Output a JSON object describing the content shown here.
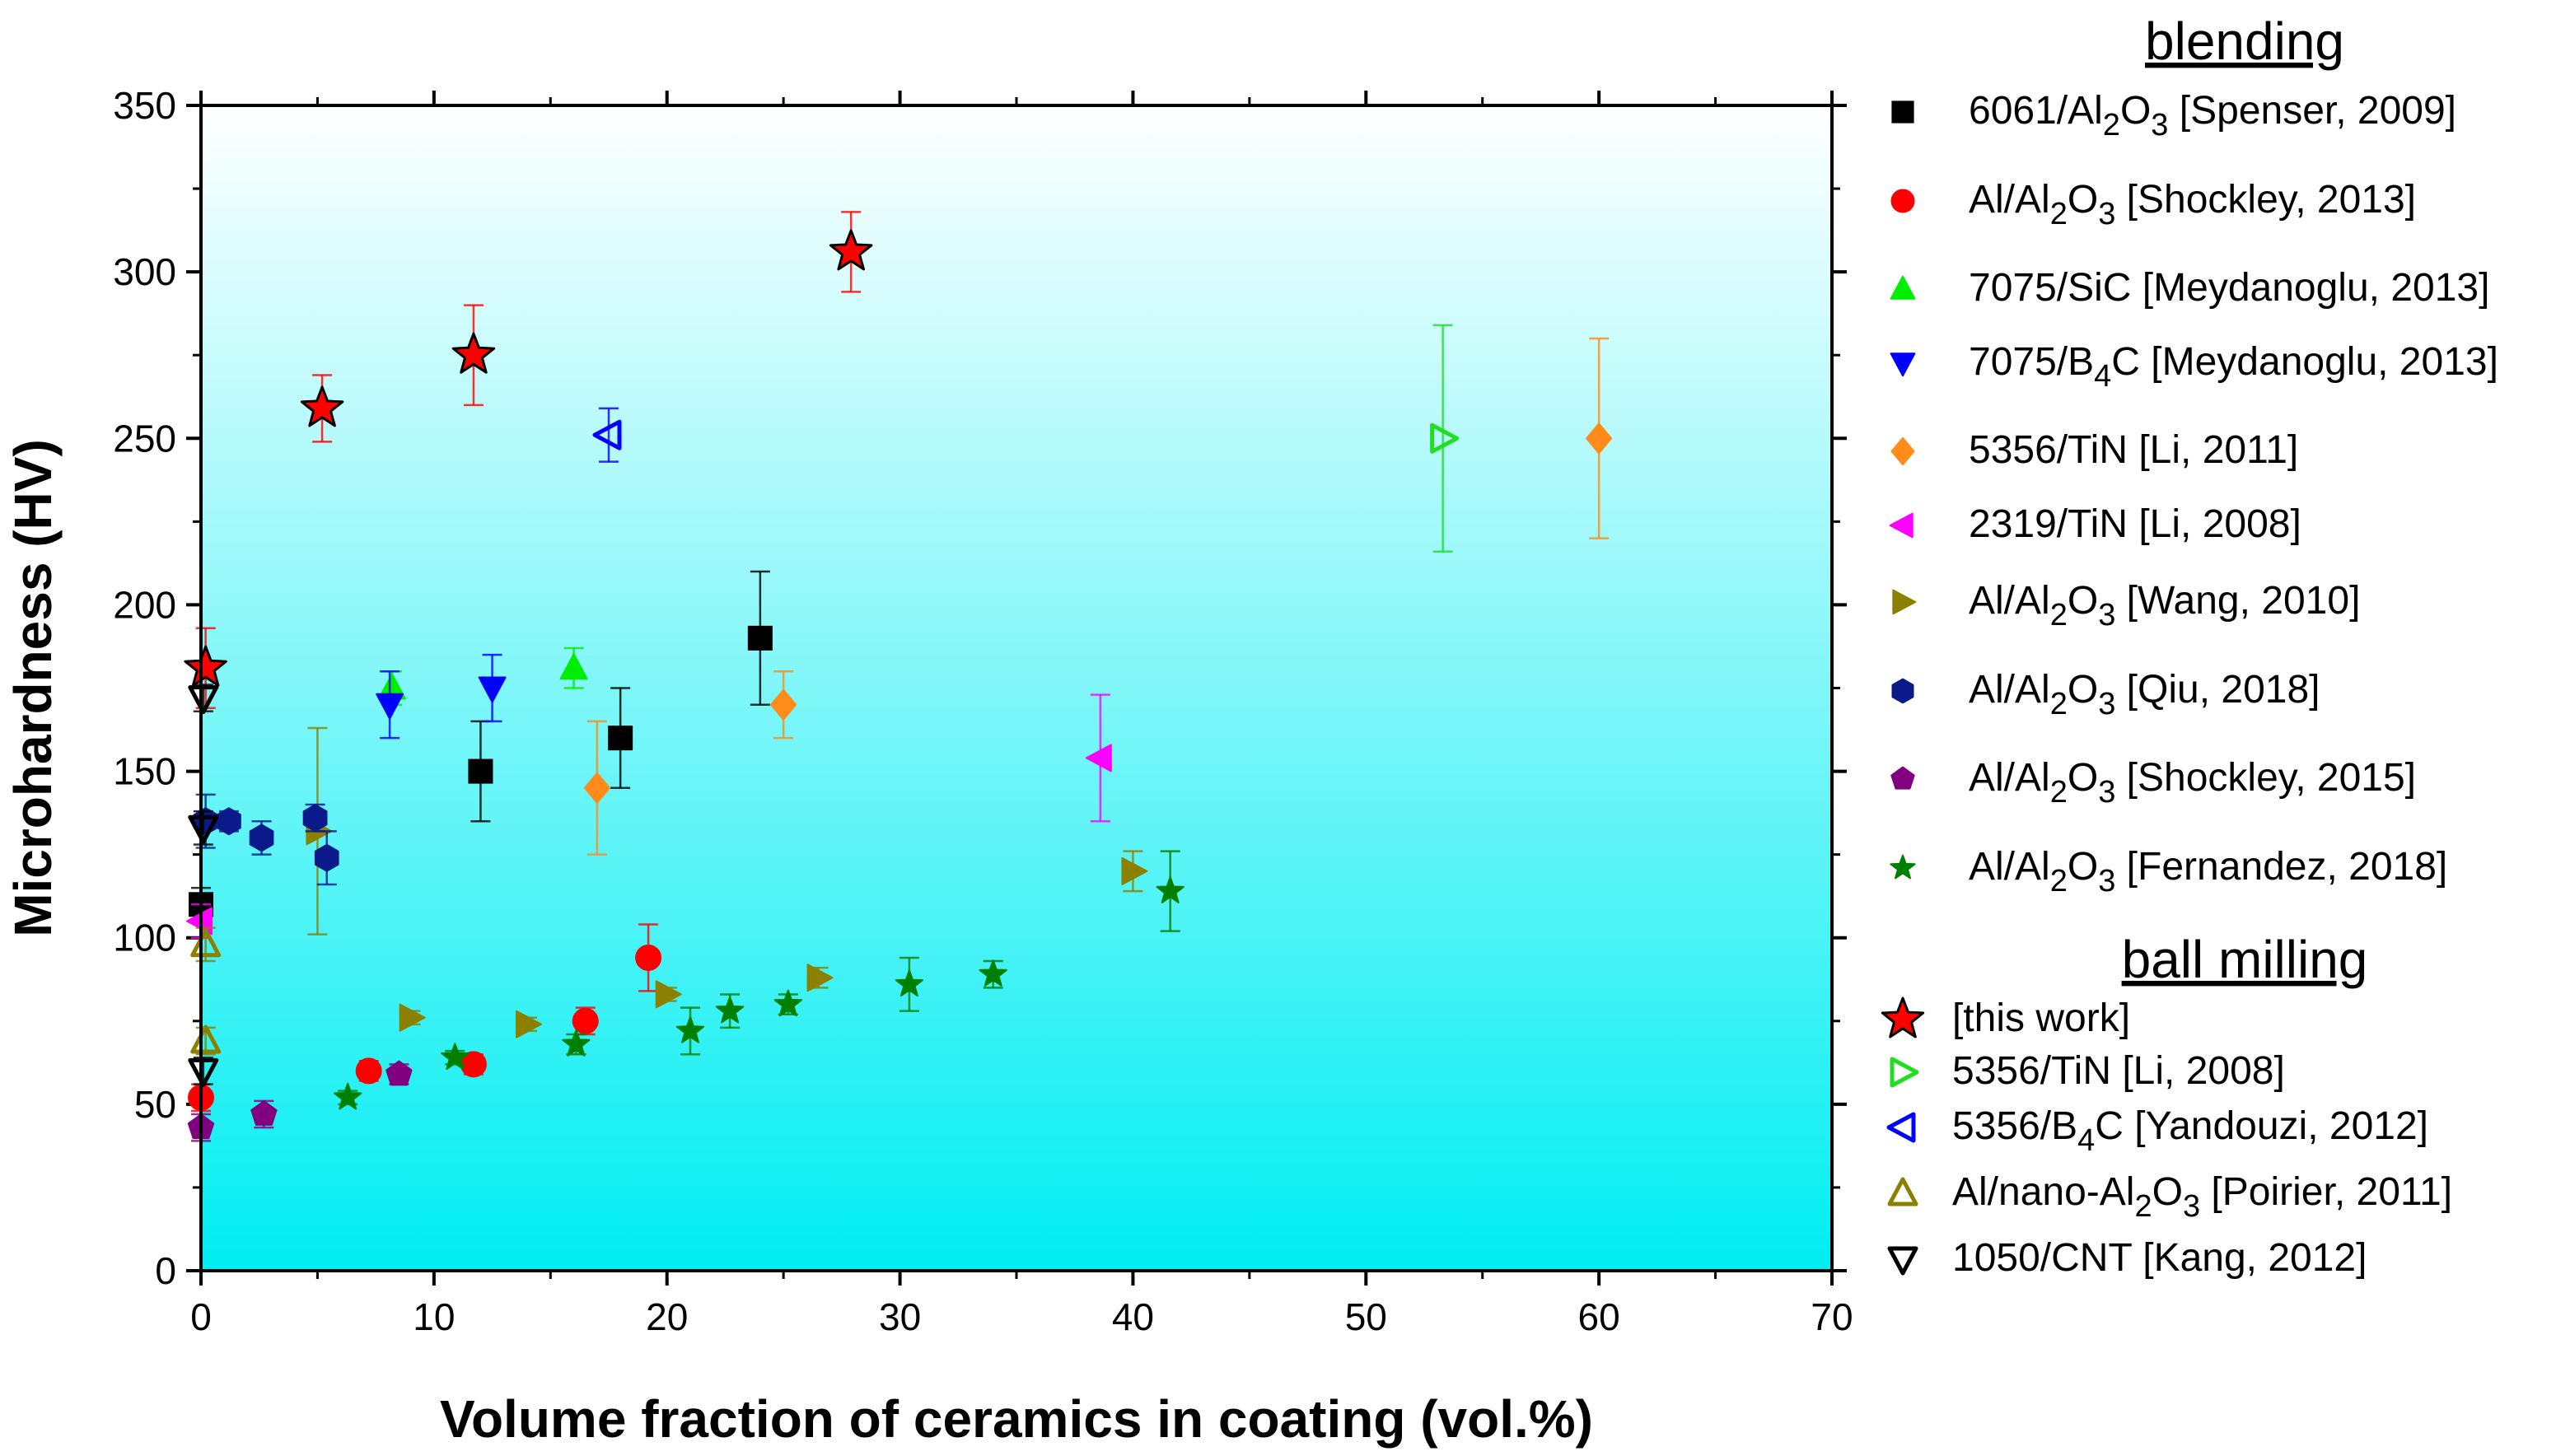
{
  "chart_data": {
    "type": "scatter",
    "title": "",
    "xlabel": "Volume fraction of ceramics in coating (vol.%)",
    "ylabel": "Microhardness (HV)",
    "xlim": [
      0,
      70
    ],
    "ylim": [
      0,
      350
    ],
    "xticks": [
      0,
      10,
      20,
      30,
      40,
      50,
      60,
      70
    ],
    "yticks": [
      0,
      50,
      100,
      150,
      200,
      250,
      300,
      350
    ],
    "grid": false,
    "background": "gradient white-to-cyan",
    "legend_groups": [
      "blending",
      "ball milling"
    ],
    "series": [
      {
        "name": "6061/Al2O3 [Spenser, 2009]",
        "group": "blending",
        "marker": "square",
        "filled": true,
        "color": "#000000",
        "points": [
          {
            "x": 0,
            "y": 110,
            "err": 5
          },
          {
            "x": 12,
            "y": 150,
            "err": 15
          },
          {
            "x": 18,
            "y": 160,
            "err": 15
          },
          {
            "x": 24,
            "y": 190,
            "err": 20
          }
        ]
      },
      {
        "name": "Al/Al2O3 [Shockley, 2013]",
        "group": "blending",
        "marker": "circle",
        "filled": true,
        "color": "#ff0000",
        "points": [
          {
            "x": 0,
            "y": 52,
            "err": 4
          },
          {
            "x": 7.2,
            "y": 60,
            "err": 3
          },
          {
            "x": 11.7,
            "y": 62,
            "err": 3
          },
          {
            "x": 16.5,
            "y": 75,
            "err": 4
          },
          {
            "x": 19.2,
            "y": 94,
            "err": 10
          }
        ]
      },
      {
        "name": "7075/SiC [Meydanoglu, 2013]",
        "group": "blending",
        "marker": "triangle-up",
        "filled": true,
        "color": "#00ee00",
        "points": [
          {
            "x": 8.2,
            "y": 175,
            "err": 5
          },
          {
            "x": 16,
            "y": 181,
            "err": 6
          }
        ]
      },
      {
        "name": "7075/B4C [Meydanoglu, 2013]",
        "group": "blending",
        "marker": "triangle-down",
        "filled": true,
        "color": "#0000ff",
        "points": [
          {
            "x": 8.1,
            "y": 170,
            "err": 10
          },
          {
            "x": 12.5,
            "y": 175,
            "err": 10
          }
        ]
      },
      {
        "name": "5356/TiN [Li, 2011]",
        "group": "blending",
        "marker": "diamond",
        "filled": true,
        "color": "#ff8c1a",
        "points": [
          {
            "x": 17,
            "y": 145,
            "err": 20
          },
          {
            "x": 25,
            "y": 170,
            "err": 10
          },
          {
            "x": 60,
            "y": 250,
            "err": 30
          }
        ]
      },
      {
        "name": "2319/TiN [Li, 2008]",
        "group": "blending",
        "marker": "triangle-left",
        "filled": true,
        "color": "#ff00ff",
        "points": [
          {
            "x": 0,
            "y": 105,
            "err": 5
          },
          {
            "x": 38.6,
            "y": 154,
            "err": 19
          }
        ]
      },
      {
        "name": "Al/Al2O3 [Wang, 2010]",
        "group": "blending",
        "marker": "triangle-right",
        "filled": true,
        "color": "#8b8000",
        "points": [
          {
            "x": 5,
            "y": 132,
            "err": 31
          },
          {
            "x": 9,
            "y": 76,
            "err": 2
          },
          {
            "x": 14,
            "y": 74,
            "err": 2
          },
          {
            "x": 20,
            "y": 83,
            "err": 2
          },
          {
            "x": 26.5,
            "y": 88,
            "err": 3
          },
          {
            "x": 40,
            "y": 120,
            "err": 6
          }
        ]
      },
      {
        "name": "Al/Al2O3 [Qiu, 2018]",
        "group": "blending",
        "marker": "hexagon",
        "filled": true,
        "color": "#0a1a8a",
        "points": [
          {
            "x": 0.2,
            "y": 135,
            "err": 8
          },
          {
            "x": 1.2,
            "y": 135,
            "err": 3
          },
          {
            "x": 2.6,
            "y": 130,
            "err": 5
          },
          {
            "x": 4.9,
            "y": 136,
            "err": 4
          },
          {
            "x": 5.4,
            "y": 124,
            "err": 8
          }
        ]
      },
      {
        "name": "Al/Al2O3 [Shockley, 2015]",
        "group": "blending",
        "marker": "pentagon",
        "filled": true,
        "color": "#800080",
        "points": [
          {
            "x": 0,
            "y": 43,
            "err": 4
          },
          {
            "x": 2.7,
            "y": 47,
            "err": 4
          },
          {
            "x": 8.5,
            "y": 59,
            "err": 3
          }
        ]
      },
      {
        "name": "Al/Al2O3 [Fernandez, 2018]",
        "group": "blending",
        "marker": "star-small",
        "filled": true,
        "color": "#008000",
        "points": [
          {
            "x": 6.3,
            "y": 52,
            "err": 2
          },
          {
            "x": 10.9,
            "y": 64,
            "err": 2
          },
          {
            "x": 16.1,
            "y": 68,
            "err": 3
          },
          {
            "x": 21,
            "y": 72,
            "err": 7
          },
          {
            "x": 22.7,
            "y": 78,
            "err": 5
          },
          {
            "x": 25.2,
            "y": 80,
            "err": 3
          },
          {
            "x": 30.4,
            "y": 86,
            "err": 8
          },
          {
            "x": 34,
            "y": 89,
            "err": 4
          },
          {
            "x": 41.6,
            "y": 114,
            "err": 12
          }
        ]
      },
      {
        "name": "[this work]",
        "group": "ball milling",
        "marker": "star",
        "filled": true,
        "color": "#ff0000",
        "points": [
          {
            "x": 0.2,
            "y": 181,
            "err": 12
          },
          {
            "x": 5.2,
            "y": 259,
            "err": 10
          },
          {
            "x": 11.7,
            "y": 275,
            "err": 15
          },
          {
            "x": 27.9,
            "y": 306,
            "err": 12
          }
        ]
      },
      {
        "name": "5356/TiN [Li, 2008]",
        "group": "ball milling",
        "marker": "triangle-right",
        "filled": false,
        "color": "#22dd22",
        "points": [
          {
            "x": 53.3,
            "y": 250,
            "err": 34
          }
        ]
      },
      {
        "name": "5356/B4C [Yandouzi, 2012]",
        "group": "ball milling",
        "marker": "triangle-left",
        "filled": false,
        "color": "#0000ff",
        "points": [
          {
            "x": 17.5,
            "y": 251,
            "err": 8
          }
        ]
      },
      {
        "name": "Al/nano-Al2O3 [Poirier, 2011]",
        "group": "ball milling",
        "marker": "triangle-up",
        "filled": false,
        "color": "#8b8000",
        "points": [
          {
            "x": 0.2,
            "y": 98,
            "err": 5
          },
          {
            "x": 0.2,
            "y": 69,
            "err": 4
          }
        ]
      },
      {
        "name": "1050/CNT [Kang, 2012]",
        "group": "ball milling",
        "marker": "triangle-down",
        "filled": false,
        "color": "#000000",
        "points": [
          {
            "x": 0.1,
            "y": 172,
            "err": 4
          },
          {
            "x": 0.1,
            "y": 133,
            "err": 5
          },
          {
            "x": 0.1,
            "y": 60,
            "err": 4
          }
        ]
      }
    ]
  },
  "legend": {
    "blending_title": "blending",
    "ball_milling_title": "ball milling",
    "entries": [
      {
        "prefix": "6061/Al",
        "sub1": "2",
        "mid": "O",
        "sub2": "3",
        "suffix": " [Spenser, 2009]"
      },
      {
        "prefix": "Al/Al",
        "sub1": "2",
        "mid": "O",
        "sub2": "3",
        "suffix": " [Shockley, 2013]"
      },
      {
        "prefix": "7075/SiC [Meydanoglu, 2013]",
        "sub1": "",
        "mid": "",
        "sub2": "",
        "suffix": ""
      },
      {
        "prefix": "7075/B",
        "sub1": "4",
        "mid": "C [Meydanoglu, 2013]",
        "sub2": "",
        "suffix": ""
      },
      {
        "prefix": "5356/TiN [Li, 2011]",
        "sub1": "",
        "mid": "",
        "sub2": "",
        "suffix": ""
      },
      {
        "prefix": "2319/TiN [Li, 2008]",
        "sub1": "",
        "mid": "",
        "sub2": "",
        "suffix": ""
      },
      {
        "prefix": "Al/Al",
        "sub1": "2",
        "mid": "O",
        "sub2": "3",
        "suffix": " [Wang, 2010]"
      },
      {
        "prefix": "Al/Al",
        "sub1": "2",
        "mid": "O",
        "sub2": "3",
        "suffix": " [Qiu, 2018]"
      },
      {
        "prefix": "Al/Al",
        "sub1": "2",
        "mid": "O",
        "sub2": "3",
        "suffix": " [Shockley, 2015]"
      },
      {
        "prefix": "Al/Al",
        "sub1": "2",
        "mid": "O",
        "sub2": "3",
        "suffix": " [Fernandez, 2018]"
      },
      {
        "prefix": "[this work]",
        "sub1": "",
        "mid": "",
        "sub2": "",
        "suffix": ""
      },
      {
        "prefix": "5356/TiN [Li, 2008]",
        "sub1": "",
        "mid": "",
        "sub2": "",
        "suffix": ""
      },
      {
        "prefix": "5356/B",
        "sub1": "4",
        "mid": "C [Yandouzi, 2012]",
        "sub2": "",
        "suffix": ""
      },
      {
        "prefix": "Al/nano-Al",
        "sub1": "2",
        "mid": "O",
        "sub2": "3",
        "suffix": " [Poirier, 2011]"
      },
      {
        "prefix": "1050/CNT [Kang, 2012]",
        "sub1": "",
        "mid": "",
        "sub2": "",
        "suffix": ""
      }
    ]
  }
}
